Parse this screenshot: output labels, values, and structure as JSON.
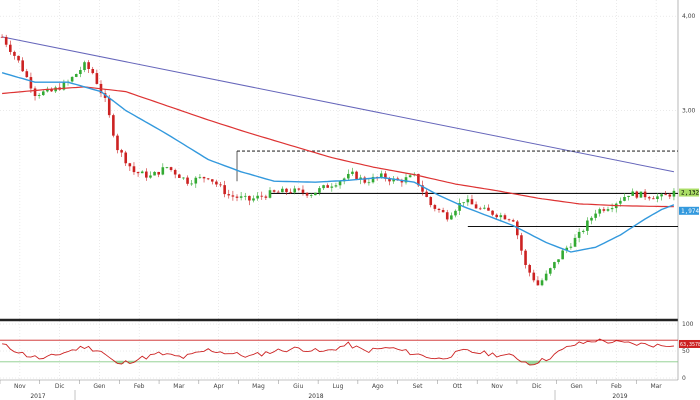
{
  "chart_data": [
    {
      "type": "candlestick",
      "ylim": [
        0.8,
        4.15
      ],
      "y_ticks": [
        {
          "label": "4,00",
          "value": 4.0
        },
        {
          "label": "3,00",
          "value": 3.0
        }
      ],
      "x_labels": [
        "Nov",
        "Dic",
        "Gen",
        "Feb",
        "Mar",
        "Apr",
        "Mag",
        "Giu",
        "Lug",
        "Ago",
        "Set",
        "Ott",
        "Nov",
        "Dic",
        "Gen",
        "Feb",
        "Mar"
      ],
      "year_labels": [
        "2017",
        "2018",
        "2019"
      ],
      "price_anchors": [
        [
          0,
          3.78
        ],
        [
          4,
          3.52
        ],
        [
          8,
          3.18
        ],
        [
          12,
          3.2
        ],
        [
          16,
          3.3
        ],
        [
          20,
          3.48
        ],
        [
          22,
          3.4
        ],
        [
          25,
          3.1
        ],
        [
          28,
          2.6
        ],
        [
          32,
          2.35
        ],
        [
          36,
          2.3
        ],
        [
          40,
          2.4
        ],
        [
          45,
          2.25
        ],
        [
          50,
          2.3
        ],
        [
          55,
          2.1
        ],
        [
          60,
          2.05
        ],
        [
          65,
          2.12
        ],
        [
          70,
          2.15
        ],
        [
          75,
          2.12
        ],
        [
          80,
          2.22
        ],
        [
          85,
          2.32
        ],
        [
          88,
          2.25
        ],
        [
          92,
          2.3
        ],
        [
          96,
          2.25
        ],
        [
          100,
          2.3
        ],
        [
          104,
          2.0
        ],
        [
          108,
          1.88
        ],
        [
          112,
          2.05
        ],
        [
          116,
          1.95
        ],
        [
          120,
          1.9
        ],
        [
          124,
          1.85
        ],
        [
          127,
          1.35
        ],
        [
          130,
          1.15
        ],
        [
          132,
          1.25
        ],
        [
          136,
          1.5
        ],
        [
          140,
          1.68
        ],
        [
          144,
          1.93
        ],
        [
          148,
          2.0
        ],
        [
          152,
          2.12
        ],
        [
          156,
          2.1
        ],
        [
          160,
          2.08
        ],
        [
          163,
          2.13
        ]
      ],
      "ma_short_anchors": [
        [
          0,
          3.4
        ],
        [
          8,
          3.3
        ],
        [
          16,
          3.3
        ],
        [
          24,
          3.2
        ],
        [
          30,
          3.0
        ],
        [
          40,
          2.75
        ],
        [
          50,
          2.48
        ],
        [
          58,
          2.35
        ],
        [
          66,
          2.25
        ],
        [
          76,
          2.24
        ],
        [
          84,
          2.26
        ],
        [
          92,
          2.29
        ],
        [
          100,
          2.24
        ],
        [
          106,
          2.1
        ],
        [
          112,
          1.98
        ],
        [
          118,
          1.88
        ],
        [
          124,
          1.78
        ],
        [
          132,
          1.6
        ],
        [
          138,
          1.5
        ],
        [
          144,
          1.55
        ],
        [
          150,
          1.68
        ],
        [
          156,
          1.85
        ],
        [
          160,
          1.95
        ],
        [
          163,
          2.0
        ]
      ],
      "ma_long_anchors": [
        [
          0,
          3.18
        ],
        [
          10,
          3.22
        ],
        [
          20,
          3.25
        ],
        [
          30,
          3.2
        ],
        [
          40,
          3.05
        ],
        [
          50,
          2.9
        ],
        [
          60,
          2.76
        ],
        [
          70,
          2.63
        ],
        [
          80,
          2.5
        ],
        [
          90,
          2.4
        ],
        [
          100,
          2.32
        ],
        [
          110,
          2.22
        ],
        [
          120,
          2.15
        ],
        [
          130,
          2.07
        ],
        [
          140,
          2.01
        ],
        [
          150,
          1.99
        ],
        [
          163,
          1.98
        ]
      ],
      "trendline": {
        "from": [
          0,
          3.78
        ],
        "to": [
          163,
          2.35
        ]
      },
      "dashed_level": {
        "from_index": 57,
        "value": 2.57
      },
      "support_1": {
        "from_index": 65,
        "value": 2.12
      },
      "support_2": {
        "from_index": 113,
        "value": 1.77
      },
      "last_price_label": "2,132",
      "ma_label": "1,974",
      "colors": {
        "up_candle": "#33aa33",
        "down_candle": "#cc2222",
        "ma_short": "#3399dd",
        "ma_long": "#dd3333",
        "trendline": "#6666bb",
        "last_price_bg": "#aadd66",
        "ma_label_bg": "#3399dd"
      }
    },
    {
      "type": "rsi",
      "ylim": [
        0,
        100
      ],
      "y_ticks": [
        {
          "label": "100",
          "value": 100
        },
        {
          "label": "50",
          "value": 50
        },
        {
          "label": "0",
          "value": 0
        }
      ],
      "overbought": 70,
      "oversold": 30,
      "value_anchors": [
        [
          0,
          62
        ],
        [
          6,
          42
        ],
        [
          10,
          35
        ],
        [
          14,
          45
        ],
        [
          20,
          58
        ],
        [
          24,
          50
        ],
        [
          28,
          25
        ],
        [
          32,
          33
        ],
        [
          38,
          45
        ],
        [
          44,
          38
        ],
        [
          50,
          52
        ],
        [
          56,
          45
        ],
        [
          60,
          40
        ],
        [
          66,
          50
        ],
        [
          72,
          55
        ],
        [
          78,
          48
        ],
        [
          84,
          62
        ],
        [
          88,
          50
        ],
        [
          94,
          56
        ],
        [
          100,
          45
        ],
        [
          106,
          35
        ],
        [
          112,
          50
        ],
        [
          118,
          45
        ],
        [
          124,
          40
        ],
        [
          128,
          26
        ],
        [
          132,
          35
        ],
        [
          138,
          60
        ],
        [
          144,
          70
        ],
        [
          150,
          65
        ],
        [
          156,
          62
        ],
        [
          160,
          60
        ],
        [
          163,
          63
        ]
      ],
      "last_value_label": "63,3578",
      "colors": {
        "line": "#cc2222",
        "band_line": "#cc2222",
        "below_fill": "#88cc88",
        "label_bg": "#cc2222"
      }
    }
  ]
}
